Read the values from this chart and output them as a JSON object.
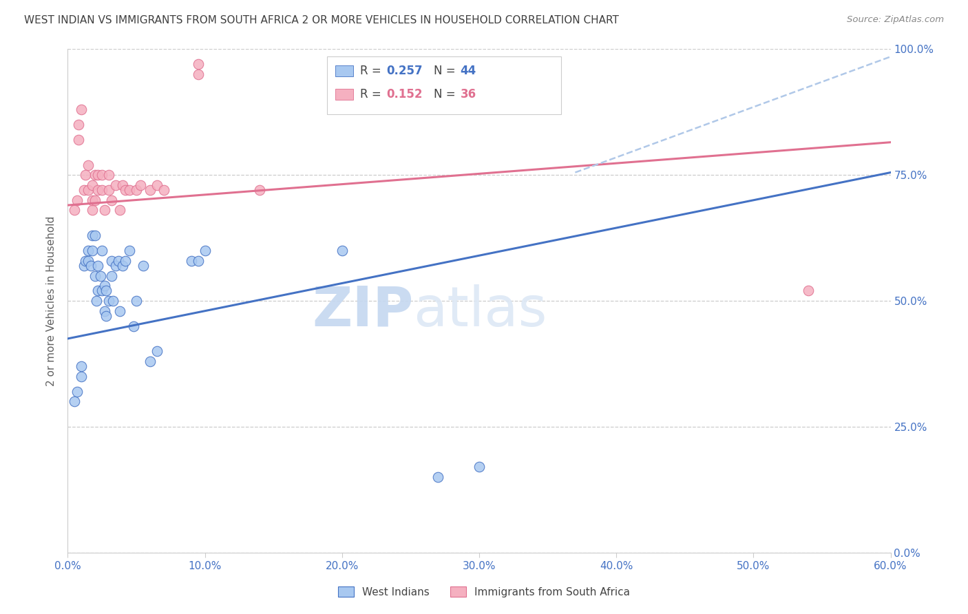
{
  "title": "WEST INDIAN VS IMMIGRANTS FROM SOUTH AFRICA 2 OR MORE VEHICLES IN HOUSEHOLD CORRELATION CHART",
  "source": "Source: ZipAtlas.com",
  "ylabel": "2 or more Vehicles in Household",
  "xlabel_ticks": [
    "0.0%",
    "10.0%",
    "20.0%",
    "30.0%",
    "40.0%",
    "50.0%",
    "60.0%"
  ],
  "ylabel_ticks": [
    "0.0%",
    "25.0%",
    "50.0%",
    "75.0%",
    "100.0%"
  ],
  "xmin": 0.0,
  "xmax": 0.6,
  "ymin": 0.0,
  "ymax": 1.0,
  "blue_R": "R = 0.257",
  "blue_N": "N = 44",
  "pink_R": "R = 0.152",
  "pink_N": "N = 36",
  "legend_labels": [
    "West Indians",
    "Immigrants from South Africa"
  ],
  "blue_color": "#a8c8f0",
  "pink_color": "#f5b0c0",
  "blue_line_color": "#4472c4",
  "pink_line_color": "#e07090",
  "dashed_line_color": "#b0c8e8",
  "title_color": "#404040",
  "axis_color": "#4472c4",
  "grid_color": "#cccccc",
  "watermark_zip": "ZIP",
  "watermark_atlas": "atlas",
  "blue_scatter_x": [
    0.005,
    0.007,
    0.01,
    0.01,
    0.012,
    0.013,
    0.015,
    0.015,
    0.017,
    0.018,
    0.018,
    0.02,
    0.02,
    0.021,
    0.022,
    0.022,
    0.024,
    0.025,
    0.025,
    0.027,
    0.027,
    0.028,
    0.028,
    0.03,
    0.032,
    0.032,
    0.033,
    0.035,
    0.037,
    0.038,
    0.04,
    0.042,
    0.045,
    0.048,
    0.05,
    0.055,
    0.06,
    0.065,
    0.09,
    0.095,
    0.1,
    0.2,
    0.27,
    0.3
  ],
  "blue_scatter_y": [
    0.3,
    0.32,
    0.35,
    0.37,
    0.57,
    0.58,
    0.58,
    0.6,
    0.57,
    0.6,
    0.63,
    0.55,
    0.63,
    0.5,
    0.52,
    0.57,
    0.55,
    0.52,
    0.6,
    0.48,
    0.53,
    0.47,
    0.52,
    0.5,
    0.55,
    0.58,
    0.5,
    0.57,
    0.58,
    0.48,
    0.57,
    0.58,
    0.6,
    0.45,
    0.5,
    0.57,
    0.38,
    0.4,
    0.58,
    0.58,
    0.6,
    0.6,
    0.15,
    0.17
  ],
  "pink_scatter_x": [
    0.005,
    0.007,
    0.008,
    0.008,
    0.01,
    0.012,
    0.013,
    0.015,
    0.015,
    0.018,
    0.018,
    0.018,
    0.02,
    0.02,
    0.022,
    0.022,
    0.025,
    0.025,
    0.027,
    0.03,
    0.03,
    0.032,
    0.035,
    0.038,
    0.04,
    0.042,
    0.045,
    0.05,
    0.053,
    0.06,
    0.065,
    0.07,
    0.095,
    0.095,
    0.14,
    0.54
  ],
  "pink_scatter_y": [
    0.68,
    0.7,
    0.82,
    0.85,
    0.88,
    0.72,
    0.75,
    0.72,
    0.77,
    0.68,
    0.7,
    0.73,
    0.7,
    0.75,
    0.72,
    0.75,
    0.72,
    0.75,
    0.68,
    0.72,
    0.75,
    0.7,
    0.73,
    0.68,
    0.73,
    0.72,
    0.72,
    0.72,
    0.73,
    0.72,
    0.73,
    0.72,
    0.95,
    0.97,
    0.72,
    0.52
  ],
  "blue_line_x0": 0.0,
  "blue_line_y0": 0.425,
  "blue_line_x1": 0.6,
  "blue_line_y1": 0.755,
  "pink_line_x0": 0.0,
  "pink_line_y0": 0.69,
  "pink_line_x1": 0.6,
  "pink_line_y1": 0.815,
  "dash_line_x0": 0.37,
  "dash_line_y0": 0.755,
  "dash_line_x1": 0.6,
  "dash_line_y1": 0.985
}
